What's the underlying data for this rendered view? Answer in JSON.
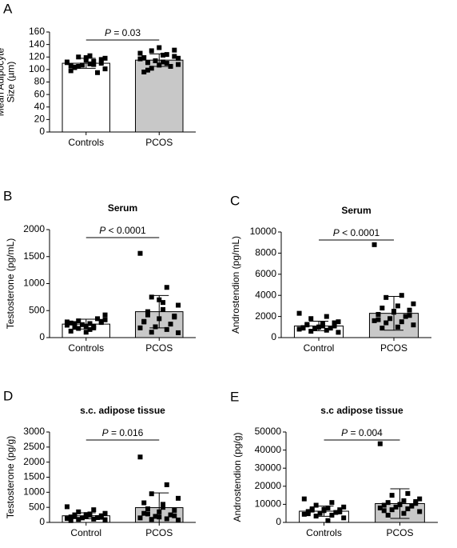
{
  "chart_data": [
    {
      "type": "bar",
      "panel": "A",
      "ylabel": [
        "Mean Adipocyte",
        "Size (µm)"
      ],
      "categories": [
        "Controls",
        "PCOS"
      ],
      "values": [
        110,
        115
      ],
      "errors": [
        8,
        10
      ],
      "points": [
        [
          112,
          108,
          105,
          118,
          122,
          103,
          110,
          115,
          98,
          95,
          107,
          111,
          113,
          120,
          101,
          109,
          104,
          116,
          119,
          106
        ],
        [
          117,
          124,
          130,
          108,
          112,
          99,
          121,
          135,
          119,
          105,
          114,
          126,
          110,
          102,
          118,
          123,
          111,
          131,
          107,
          96
        ]
      ],
      "colors": [
        "#ffffff",
        "#c8c8c8"
      ],
      "annotation_symbol": "P",
      "annotation": "= 0.03",
      "ylim": [
        0,
        160
      ],
      "yticks": [
        0,
        20,
        40,
        60,
        80,
        100,
        120,
        140,
        160
      ]
    },
    {
      "type": "bar",
      "panel": "B",
      "title": "Serum",
      "ylabel": [
        "Testosterone (pg/mL)"
      ],
      "categories": [
        "Controls",
        "PCOS"
      ],
      "values": [
        250,
        480
      ],
      "errors": [
        90,
        300
      ],
      "points": [
        [
          230,
          180,
          310,
          420,
          150,
          260,
          280,
          200,
          120,
          350,
          240,
          290,
          210,
          170,
          330,
          260,
          190,
          300,
          100,
          270
        ],
        [
          1560,
          930,
          750,
          600,
          520,
          480,
          400,
          350,
          300,
          250,
          200,
          180,
          150,
          100,
          90,
          650,
          420,
          380,
          700,
          290
        ]
      ],
      "colors": [
        "#ffffff",
        "#c8c8c8"
      ],
      "annotation_symbol": "P",
      "annotation": "< 0.0001",
      "ylim": [
        0,
        2000
      ],
      "yticks": [
        0,
        500,
        1000,
        1500,
        2000
      ]
    },
    {
      "type": "bar",
      "panel": "C",
      "title": "Serum",
      "ylabel": [
        "Androstendion (pg/mL)"
      ],
      "categories": [
        "Control",
        "PCOS"
      ],
      "values": [
        1100,
        2300
      ],
      "errors": [
        450,
        1600
      ],
      "points": [
        [
          2300,
          2000,
          1800,
          1500,
          1300,
          1200,
          1100,
          1000,
          950,
          900,
          850,
          800,
          700,
          600,
          500,
          1100,
          1250,
          1400,
          1000,
          900
        ],
        [
          8800,
          4000,
          3800,
          3200,
          3000,
          2800,
          2600,
          2400,
          2200,
          2000,
          1800,
          1600,
          1500,
          1400,
          1200,
          1000,
          900,
          2100,
          2500,
          1700
        ]
      ],
      "colors": [
        "#ffffff",
        "#c8c8c8"
      ],
      "annotation_symbol": "P",
      "annotation": "< 0.0001",
      "ylim": [
        0,
        10000
      ],
      "yticks": [
        0,
        2000,
        4000,
        6000,
        8000,
        10000
      ]
    },
    {
      "type": "bar",
      "panel": "D",
      "title": "s.c. adipose tissue",
      "ylabel": [
        "Testosterone (pg/g)"
      ],
      "categories": [
        "Control",
        "PCOS"
      ],
      "values": [
        220,
        490
      ],
      "errors": [
        100,
        490
      ],
      "points": [
        [
          520,
          420,
          350,
          300,
          280,
          250,
          220,
          200,
          180,
          160,
          150,
          130,
          110,
          100,
          90,
          240,
          190,
          170,
          260,
          60
        ],
        [
          2170,
          1250,
          950,
          800,
          600,
          450,
          400,
          350,
          300,
          250,
          200,
          150,
          120,
          100,
          80,
          500,
          280,
          220,
          180,
          650
        ]
      ],
      "colors": [
        "#ffffff",
        "#c8c8c8"
      ],
      "annotation_symbol": "P",
      "annotation": "= 0.016",
      "ylim": [
        0,
        3000
      ],
      "yticks": [
        0,
        500,
        1000,
        1500,
        2000,
        2500,
        3000
      ]
    },
    {
      "type": "bar",
      "panel": "E",
      "title": "s.c adipose tissue",
      "ylabel": [
        "Androstendion (pg/g)"
      ],
      "categories": [
        "Controls",
        "PCOS"
      ],
      "values": [
        6200,
        10400
      ],
      "errors": [
        2800,
        8200
      ],
      "points": [
        [
          13000,
          11000,
          9500,
          8500,
          8000,
          7500,
          7000,
          6500,
          6000,
          5500,
          5000,
          4500,
          4000,
          3500,
          2500,
          1000,
          6800,
          5800,
          7200,
          4800
        ],
        [
          43500,
          16000,
          15000,
          13000,
          12000,
          11000,
          10500,
          10000,
          9500,
          9000,
          8500,
          8000,
          7500,
          7000,
          6000,
          5000,
          4000,
          11500,
          9800,
          6500
        ]
      ],
      "colors": [
        "#ffffff",
        "#c8c8c8"
      ],
      "annotation_symbol": "P",
      "annotation": "= 0.004",
      "ylim": [
        0,
        50000
      ],
      "yticks": [
        0,
        10000,
        20000,
        30000,
        40000,
        50000
      ]
    }
  ]
}
